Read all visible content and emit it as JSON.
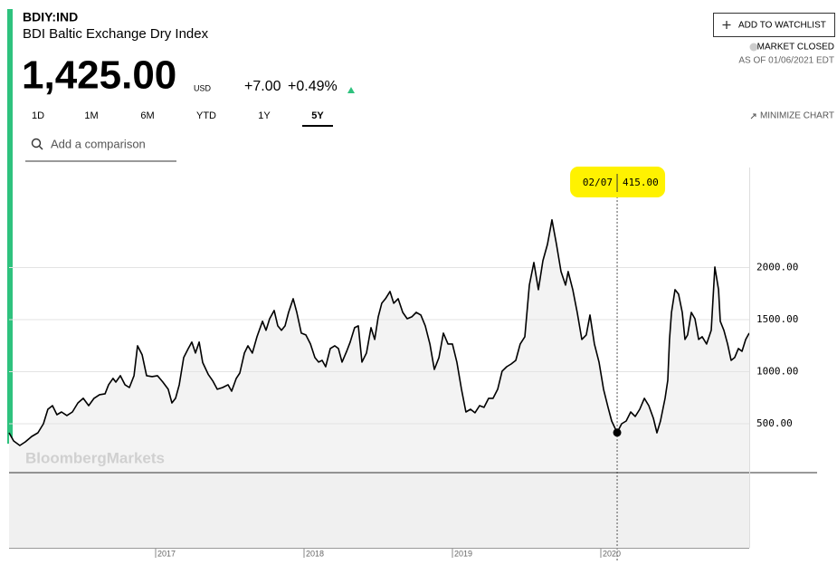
{
  "header": {
    "ticker": "BDIY:IND",
    "name": "BDI Baltic Exchange Dry Index",
    "price": "1,425.00",
    "currency": "USD",
    "change": "+7.00",
    "change_percent": "+0.49%",
    "watchlist_button": "ADD TO WATCHLIST",
    "market_status": "MARKET CLOSED",
    "as_of": "AS OF 01/06/2021 EDT",
    "tabs": [
      "1D",
      "1M",
      "6M",
      "YTD",
      "1Y",
      "5Y"
    ],
    "active_range": "5Y",
    "minimize": "MINIMIZE CHART",
    "comparison_placeholder": "Add a comparison",
    "watermark": "BloombergMarkets"
  },
  "chart_data": {
    "type": "line",
    "color": "#000000",
    "area_color": "#f3f3f3",
    "grid": true,
    "x": [
      2016.012,
      2016.043,
      2016.085,
      2016.122,
      2016.165,
      2016.207,
      2016.244,
      2016.274,
      2016.305,
      2016.335,
      2016.366,
      2016.402,
      2016.439,
      2016.476,
      2016.512,
      2016.549,
      2016.585,
      2016.622,
      2016.659,
      2016.683,
      2016.713,
      2016.732,
      2016.762,
      2016.793,
      2016.823,
      2016.854,
      2016.878,
      2016.909,
      2016.939,
      2016.976,
      2017.012,
      2017.049,
      2017.085,
      2017.11,
      2017.134,
      2017.159,
      2017.189,
      2017.22,
      2017.244,
      2017.268,
      2017.293,
      2017.317,
      2017.354,
      2017.384,
      2017.415,
      2017.451,
      2017.488,
      2017.512,
      2017.543,
      2017.567,
      2017.598,
      2017.622,
      2017.652,
      2017.683,
      2017.72,
      2017.744,
      2017.768,
      2017.799,
      2017.823,
      2017.848,
      2017.872,
      2017.896,
      2017.927,
      2017.951,
      2017.982,
      2018.012,
      2018.043,
      2018.073,
      2018.098,
      2018.122,
      2018.146,
      2018.177,
      2018.207,
      2018.232,
      2018.256,
      2018.287,
      2018.311,
      2018.341,
      2018.366,
      2018.39,
      2018.421,
      2018.451,
      2018.476,
      2018.5,
      2018.524,
      2018.549,
      2018.579,
      2018.604,
      2018.634,
      2018.665,
      2018.695,
      2018.726,
      2018.756,
      2018.787,
      2018.817,
      2018.848,
      2018.878,
      2018.909,
      2018.939,
      2018.97,
      2019.0,
      2019.03,
      2019.061,
      2019.091,
      2019.122,
      2019.152,
      2019.183,
      2019.213,
      2019.244,
      2019.274,
      2019.305,
      2019.335,
      2019.366,
      2019.396,
      2019.427,
      2019.457,
      2019.488,
      2019.518,
      2019.549,
      2019.579,
      2019.61,
      2019.64,
      2019.671,
      2019.701,
      2019.732,
      2019.762,
      2019.78,
      2019.811,
      2019.841,
      2019.872,
      2019.902,
      2019.927,
      2019.957,
      2019.988,
      2020.018,
      2020.049,
      2020.073,
      2020.11,
      2020.14,
      2020.171,
      2020.201,
      2020.232,
      2020.262,
      2020.293,
      2020.323,
      2020.354,
      2020.378,
      2020.402,
      2020.433,
      2020.451,
      2020.463,
      2020.476,
      2020.5,
      2020.524,
      2020.549,
      2020.567,
      2020.585,
      2020.61,
      2020.634,
      2020.659,
      2020.683,
      2020.713,
      2020.744,
      2020.768,
      2020.793,
      2020.805,
      2020.829,
      2020.854,
      2020.878,
      2020.902,
      2020.927,
      2020.951,
      2020.976,
      2021.0
    ],
    "values": [
      413,
      335,
      291,
      326,
      378,
      413,
      500,
      639,
      674,
      587,
      613,
      579,
      613,
      700,
      744,
      674,
      744,
      779,
      788,
      875,
      936,
      900,
      962,
      875,
      848,
      962,
      1249,
      1162,
      962,
      953,
      962,
      900,
      831,
      700,
      744,
      875,
      1136,
      1223,
      1284,
      1179,
      1284,
      1088,
      975,
      914,
      831,
      848,
      875,
      813,
      936,
      987,
      1179,
      1249,
      1179,
      1336,
      1484,
      1397,
      1509,
      1588,
      1440,
      1397,
      1440,
      1570,
      1701,
      1570,
      1370,
      1353,
      1266,
      1136,
      1092,
      1109,
      1048,
      1223,
      1249,
      1223,
      1092,
      1196,
      1284,
      1423,
      1440,
      1092,
      1179,
      1423,
      1310,
      1527,
      1657,
      1701,
      1770,
      1657,
      1701,
      1570,
      1509,
      1527,
      1570,
      1544,
      1440,
      1266,
      1022,
      1136,
      1370,
      1266,
      1266,
      1092,
      831,
      613,
      639,
      605,
      674,
      657,
      744,
      744,
      831,
      1005,
      1048,
      1074,
      1109,
      1266,
      1336,
      1831,
      2049,
      1788,
      2066,
      2223,
      2458,
      2223,
      1962,
      1831,
      1962,
      1788,
      1570,
      1310,
      1353,
      1544,
      1266,
      1092,
      831,
      657,
      526,
      415,
      500,
      526,
      613,
      570,
      639,
      744,
      674,
      552,
      413,
      526,
      744,
      918,
      1310,
      1570,
      1788,
      1744,
      1570,
      1310,
      1353,
      1570,
      1509,
      1310,
      1336,
      1266,
      1397,
      2005,
      1788,
      1484,
      1397,
      1266,
      1109,
      1136,
      1223,
      1196,
      1310,
      1370
    ],
    "xlim": [
      2016,
      2021
    ],
    "xticks": [
      2017,
      2018,
      2019,
      2020
    ],
    "ylim": [
      0,
      2900
    ],
    "yticks": [
      {
        "value": 500,
        "label": "500.00"
      },
      {
        "value": 1000,
        "label": "1000.00"
      },
      {
        "value": 1500,
        "label": "1500.00"
      },
      {
        "value": 2000,
        "label": "2000.00"
      }
    ],
    "annotation": {
      "x": 2020.11,
      "label": "02/07",
      "value": 415,
      "value_label": "415.00"
    }
  }
}
